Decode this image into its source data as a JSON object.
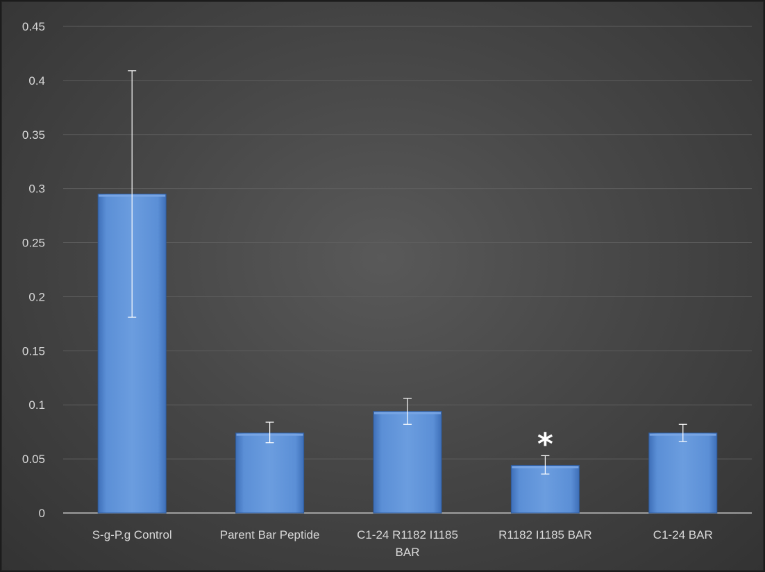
{
  "chart_data": {
    "type": "bar",
    "title": "",
    "xlabel": "",
    "ylabel": "",
    "categories": [
      [
        "S-g-P.g Control"
      ],
      [
        "Parent Bar Peptide"
      ],
      [
        "C1-24 R1182 I1185",
        "BAR"
      ],
      [
        "R1182 I1185 BAR"
      ],
      [
        "C1-24 BAR"
      ]
    ],
    "values": [
      0.295,
      0.074,
      0.094,
      0.044,
      0.074
    ],
    "error_bars": [
      {
        "low": 0.181,
        "high": 0.409
      },
      {
        "low": 0.065,
        "high": 0.084
      },
      {
        "low": 0.082,
        "high": 0.106
      },
      {
        "low": 0.036,
        "high": 0.053
      },
      {
        "low": 0.066,
        "high": 0.082
      }
    ],
    "annotations": [
      {
        "category_index": 3,
        "text": "*"
      }
    ],
    "ylim": [
      0,
      0.45
    ],
    "yticks": [
      "0",
      "0.05",
      "0.1",
      "0.15",
      "0.2",
      "0.25",
      "0.3",
      "0.35",
      "0.4",
      "0.45"
    ],
    "grid": true,
    "legend": "none",
    "colors": {
      "bar": "#5b8fd6",
      "bar_light": "#7aa6e4",
      "bar_dark": "#3e6fb8",
      "grid": "#5e5e5e",
      "axis": "#bfbfbf",
      "text": "#d9d9d9"
    }
  }
}
